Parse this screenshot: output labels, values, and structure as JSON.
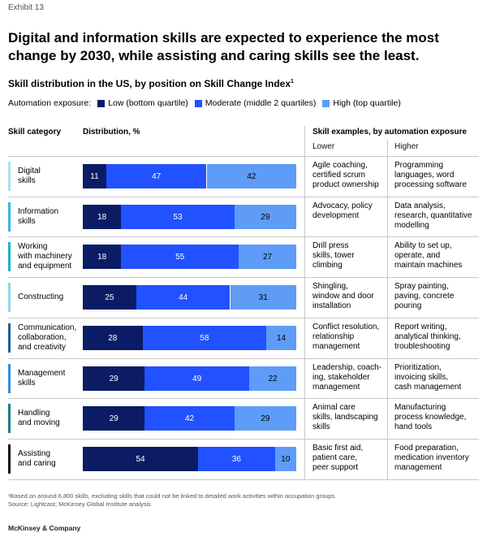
{
  "exhibit": "Exhibit 13",
  "headline": "Digital and information skills are expected to experience the most change by 2030, while assisting and caring skills see the least.",
  "subtitle": "Skill distribution in the US, by position on Skill Change Index",
  "subtitle_footnote_mark": "1",
  "legend": {
    "title": "Automation exposure:",
    "items": [
      {
        "label": "Low (bottom quartile)",
        "color": "#0b1c64"
      },
      {
        "label": "Moderate (middle 2 quartiles)",
        "color": "#2251ff"
      },
      {
        "label": "High (top quartile)",
        "color": "#5e9cf7"
      }
    ]
  },
  "columns": {
    "category": "Skill category",
    "distribution": "Distribution, %",
    "examples": "Skill examples, by automation exposure",
    "lower": "Lower",
    "higher": "Higher"
  },
  "chart_data": {
    "type": "bar",
    "orientation": "horizontal",
    "stacked": true,
    "unit": "%",
    "categories": [
      "Digital\nskills",
      "Information\nskills",
      "Working\nwith machinery\nand equipment",
      "Constructing",
      "Communication,\ncollaboration,\nand creativity",
      "Management\nskills",
      "Handling\nand moving",
      "Assisting\nand caring"
    ],
    "category_colors": [
      "#a8e2ef",
      "#3ab3e8",
      "#1ab2c7",
      "#8fd8e8",
      "#1f5f9a",
      "#2e8fdc",
      "#1a7f86",
      "#111111"
    ],
    "series": [
      {
        "name": "Low (bottom quartile)",
        "color": "#0b1c64",
        "values": [
          11,
          18,
          18,
          25,
          28,
          29,
          29,
          54
        ]
      },
      {
        "name": "Moderate (middle 2 quartiles)",
        "color": "#2251ff",
        "values": [
          47,
          53,
          55,
          44,
          58,
          49,
          42,
          36
        ]
      },
      {
        "name": "High (top quartile)",
        "color": "#5e9cf7",
        "values": [
          42,
          29,
          27,
          31,
          14,
          22,
          29,
          10
        ]
      }
    ],
    "xlim": [
      0,
      100
    ]
  },
  "examples": [
    {
      "lower": "Agile coaching,\ncertified scrum\nproduct ownership",
      "higher": "Programming\nlanguages, word\nprocessing software"
    },
    {
      "lower": "Advocacy, policy\ndevelopment",
      "higher": "Data analysis,\nresearch, quantitative\nmodelling"
    },
    {
      "lower": "Drill press\nskills, tower\nclimbing",
      "higher": "Ability to set up,\noperate, and\nmaintain machines"
    },
    {
      "lower": "Shingling,\nwindow and door\ninstallation",
      "higher": "Spray painting,\npaving, concrete\npouring"
    },
    {
      "lower": "Conflict resolution,\nrelationship\nmanagement",
      "higher": "Report writing,\nanalytical thinking,\ntroubleshooting"
    },
    {
      "lower": "Leadership, coach-\ning, stakeholder\nmanagement",
      "higher": "Prioritization,\ninvoicing skills,\ncash management"
    },
    {
      "lower": "Animal care\nskills, landscaping\nskills",
      "higher": "Manufacturing\nprocess knowledge,\nhand tools"
    },
    {
      "lower": "Basic first aid,\npatient care,\npeer support",
      "higher": "Food preparation,\nmedication inventory\nmanagement"
    }
  ],
  "footnote": "¹Based on around 6,800 skills, excluding skills that could not be linked to detailed work activities within occupation groups.",
  "source": "Source: Lightcast; McKinsey Global Institute analysis",
  "brand": "McKinsey & Company"
}
